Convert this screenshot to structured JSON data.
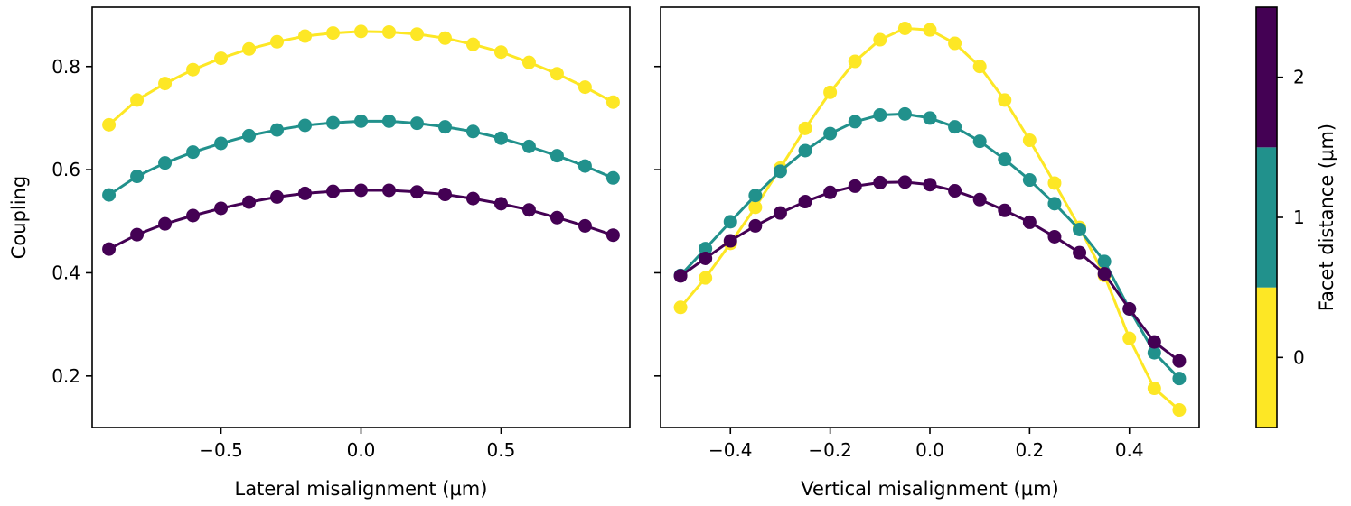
{
  "chart_data": [
    {
      "type": "line",
      "xlabel": "Lateral misalignment (μm)",
      "ylabel": "Coupling",
      "xlim": [
        -0.96,
        0.96
      ],
      "ylim": [
        0.1,
        0.915
      ],
      "xticks": [
        -0.5,
        0.0,
        0.5
      ],
      "xtick_labels": [
        "−0.5",
        "0.0",
        "0.5"
      ],
      "yticks": [
        0.2,
        0.4,
        0.6,
        0.8
      ],
      "ytick_labels": [
        "0.2",
        "0.4",
        "0.6",
        "0.8"
      ],
      "grid": false,
      "x": [
        -0.9,
        -0.8,
        -0.7,
        -0.6,
        -0.5,
        -0.4,
        -0.3,
        -0.2,
        -0.1,
        0.0,
        0.1,
        0.2,
        0.3,
        0.4,
        0.5,
        0.6,
        0.7,
        0.8,
        0.9
      ],
      "series": [
        {
          "name": "0",
          "color": "#fde725",
          "values": [
            0.687,
            0.735,
            0.767,
            0.794,
            0.816,
            0.834,
            0.848,
            0.859,
            0.865,
            0.868,
            0.867,
            0.863,
            0.855,
            0.843,
            0.828,
            0.808,
            0.786,
            0.76,
            0.731
          ]
        },
        {
          "name": "1",
          "color": "#21918c",
          "values": [
            0.551,
            0.587,
            0.613,
            0.634,
            0.651,
            0.666,
            0.677,
            0.686,
            0.691,
            0.694,
            0.694,
            0.69,
            0.683,
            0.674,
            0.661,
            0.645,
            0.627,
            0.607,
            0.584
          ]
        },
        {
          "name": "2",
          "color": "#440154",
          "values": [
            0.446,
            0.474,
            0.495,
            0.511,
            0.525,
            0.537,
            0.547,
            0.554,
            0.558,
            0.56,
            0.56,
            0.557,
            0.552,
            0.544,
            0.534,
            0.522,
            0.507,
            0.491,
            0.473
          ]
        }
      ]
    },
    {
      "type": "line",
      "xlabel": "Vertical misalignment (μm)",
      "ylabel": "",
      "xlim": [
        -0.54,
        0.54
      ],
      "ylim": [
        0.1,
        0.915
      ],
      "xticks": [
        -0.4,
        -0.2,
        0.0,
        0.2,
        0.4
      ],
      "xtick_labels": [
        "−0.4",
        "−0.2",
        "0.0",
        "0.2",
        "0.4"
      ],
      "yticks": [
        0.2,
        0.4,
        0.6,
        0.8
      ],
      "grid": false,
      "x": [
        -0.5,
        -0.45,
        -0.4,
        -0.35,
        -0.3,
        -0.25,
        -0.2,
        -0.15,
        -0.1,
        -0.05,
        0.0,
        0.05,
        0.1,
        0.15,
        0.2,
        0.25,
        0.3,
        0.35,
        0.4,
        0.45,
        0.5
      ],
      "series": [
        {
          "name": "0",
          "color": "#fde725",
          "values": [
            0.333,
            0.39,
            0.457,
            0.527,
            0.603,
            0.68,
            0.75,
            0.81,
            0.852,
            0.874,
            0.871,
            0.845,
            0.8,
            0.735,
            0.657,
            0.574,
            0.488,
            0.395,
            0.273,
            0.176,
            0.134
          ]
        },
        {
          "name": "1",
          "color": "#21918c",
          "values": [
            0.395,
            0.447,
            0.499,
            0.55,
            0.597,
            0.637,
            0.67,
            0.693,
            0.706,
            0.708,
            0.7,
            0.683,
            0.655,
            0.62,
            0.58,
            0.534,
            0.484,
            0.422,
            0.33,
            0.245,
            0.195
          ]
        },
        {
          "name": "2",
          "color": "#440154",
          "values": [
            0.394,
            0.428,
            0.462,
            0.491,
            0.516,
            0.538,
            0.556,
            0.568,
            0.575,
            0.576,
            0.571,
            0.559,
            0.542,
            0.521,
            0.498,
            0.47,
            0.439,
            0.398,
            0.33,
            0.266,
            0.229
          ]
        }
      ]
    }
  ],
  "colorbar": {
    "label": "Facet distance (μm)",
    "ticks": [
      0,
      1,
      2
    ],
    "tick_labels": [
      "0",
      "1",
      "2"
    ],
    "range": [
      -0.5,
      2.5
    ],
    "bands": [
      {
        "color": "#fde725",
        "from": -0.5,
        "to": 0.5
      },
      {
        "color": "#21918c",
        "from": 0.5,
        "to": 1.5
      },
      {
        "color": "#440154",
        "from": 1.5,
        "to": 2.5
      }
    ]
  }
}
